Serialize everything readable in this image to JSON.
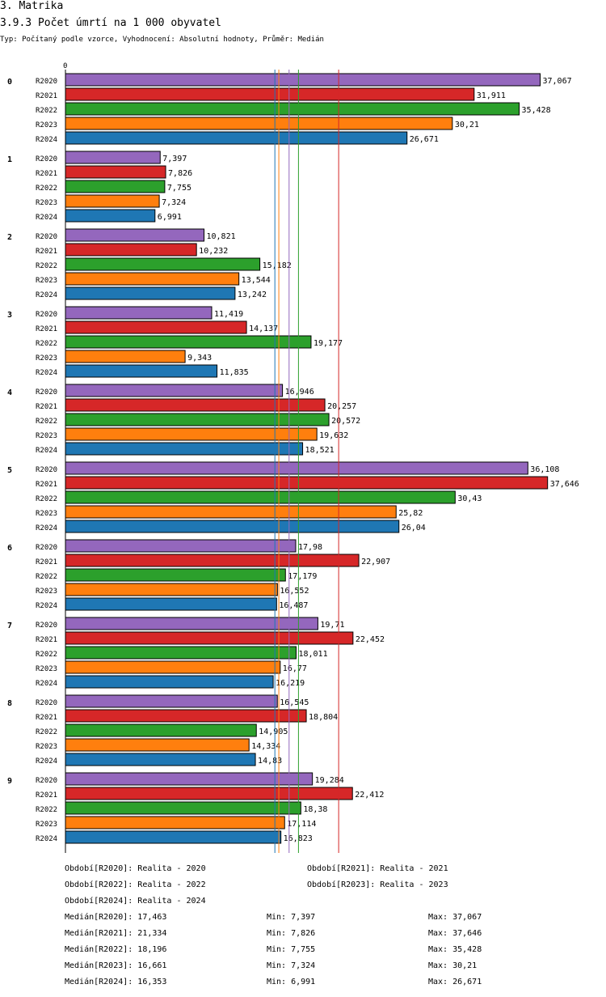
{
  "header": {
    "section": "3. Matrika",
    "title": "3.9.3 Počet úmrtí na 1 000 obyvatel",
    "subtitle": "Typ: Počítaný podle vzorce, Vyhodnocení: Absolutní hodnoty, Průměr: Medián"
  },
  "chart_data": {
    "type": "bar",
    "orientation": "horizontal",
    "axis_zero_label": "0",
    "xlim": [
      0,
      38.4
    ],
    "categories": [
      "0",
      "1",
      "2",
      "3",
      "4",
      "5",
      "6",
      "7",
      "8",
      "9"
    ],
    "series": [
      {
        "name": "R2020",
        "color": "#9467bd",
        "values": [
          37.067,
          7.397,
          10.821,
          11.419,
          16.946,
          36.108,
          17.98,
          19.71,
          16.545,
          19.284
        ],
        "labels": [
          "37,067",
          "7,397",
          "10,821",
          "11,419",
          "16,946",
          "36,108",
          "17,98",
          "19,71",
          "16,545",
          "19,284"
        ]
      },
      {
        "name": "R2021",
        "color": "#d62728",
        "values": [
          31.911,
          7.826,
          10.232,
          14.137,
          20.257,
          37.646,
          22.907,
          22.452,
          18.804,
          22.412
        ],
        "labels": [
          "31,911",
          "7,826",
          "10,232",
          "14,137",
          "20,257",
          "37,646",
          "22,907",
          "22,452",
          "18,804",
          "22,412"
        ]
      },
      {
        "name": "R2022",
        "color": "#2ca02c",
        "values": [
          35.428,
          7.755,
          15.182,
          19.177,
          20.572,
          30.43,
          17.179,
          18.011,
          14.905,
          18.38
        ],
        "labels": [
          "35,428",
          "7,755",
          "15,182",
          "19,177",
          "20,572",
          "30,43",
          "17,179",
          "18,011",
          "14,905",
          "18,38"
        ]
      },
      {
        "name": "R2023",
        "color": "#ff7f0e",
        "values": [
          30.21,
          7.324,
          13.544,
          9.343,
          19.632,
          25.82,
          16.552,
          16.77,
          14.334,
          17.114
        ],
        "labels": [
          "30,21",
          "7,324",
          "13,544",
          "9,343",
          "19,632",
          "25,82",
          "16,552",
          "16,77",
          "14,334",
          "17,114"
        ]
      },
      {
        "name": "R2024",
        "color": "#1f77b4",
        "values": [
          26.671,
          6.991,
          13.242,
          11.835,
          18.521,
          26.04,
          16.487,
          16.219,
          14.83,
          16.823
        ],
        "labels": [
          "26,671",
          "6,991",
          "13,242",
          "11,835",
          "18,521",
          "26,04",
          "16,487",
          "16,219",
          "14,83",
          "16,823"
        ]
      }
    ],
    "reference_lines": [
      {
        "name": "median-R2020",
        "value": 17.463,
        "color": "#9467bd"
      },
      {
        "name": "median-R2021",
        "value": 21.334,
        "color": "#d62728"
      },
      {
        "name": "median-R2022",
        "value": 18.196,
        "color": "#2ca02c"
      },
      {
        "name": "median-R2023",
        "value": 16.661,
        "color": "#ff7f0e"
      },
      {
        "name": "median-R2024",
        "value": 16.353,
        "color": "#1f77b4"
      }
    ]
  },
  "legend": {
    "periods": [
      "Období[R2020]: Realita - 2020",
      "Období[R2021]: Realita - 2021",
      "Období[R2022]: Realita - 2022",
      "Období[R2023]: Realita - 2023",
      "Období[R2024]: Realita - 2024"
    ],
    "stats": [
      {
        "median": "Medián[R2020]: 17,463",
        "min": "Min: 7,397",
        "max": "Max: 37,067"
      },
      {
        "median": "Medián[R2021]: 21,334",
        "min": "Min: 7,826",
        "max": "Max: 37,646"
      },
      {
        "median": "Medián[R2022]: 18,196",
        "min": "Min: 7,755",
        "max": "Max: 35,428"
      },
      {
        "median": "Medián[R2023]: 16,661",
        "min": "Min: 7,324",
        "max": "Max: 30,21"
      },
      {
        "median": "Medián[R2024]: 16,353",
        "min": "Min: 6,991",
        "max": "Max: 26,671"
      }
    ]
  }
}
